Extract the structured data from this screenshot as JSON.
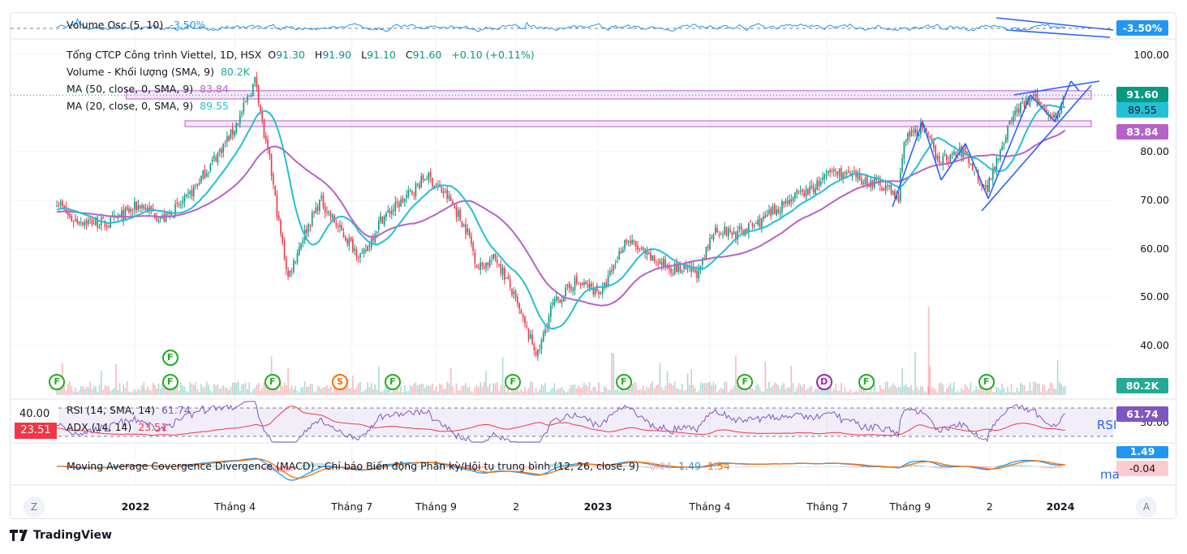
{
  "colors": {
    "up": "#089981",
    "down": "#f23645",
    "ma20": "#22c0d4",
    "ma50": "#b762c9",
    "rsi": "#7e57c2",
    "adx": "#f23645",
    "vosc": "#2196f3",
    "macd": "#2196f3",
    "signal": "#ff6d00",
    "drawing": "#2962ff"
  },
  "legend": {
    "vosc_label": "Volume Osc (5, 10)",
    "vosc_value": "-3.50%",
    "symbol": "Tổng CTCP Công trình Viettel, 1D, HSX",
    "o_label": "O",
    "o": "91.30",
    "h_label": "H",
    "h": "91.90",
    "l_label": "L",
    "l": "91.10",
    "c_label": "C",
    "c": "91.60",
    "change": "+0.10 (+0.11%)",
    "volume_label": "Volume - Khối lượng (SMA, 9)",
    "volume_value": "80.2K",
    "ma50_label": "MA (50, close, 0, SMA, 9)",
    "ma50_value": "83.84",
    "ma20_label": "MA (20, close, 0, SMA, 9)",
    "ma20_value": "89.55",
    "rsi_label": "RSI (14, SMA, 14)",
    "rsi_value": "61.74",
    "adx_label": "ADX (14, 14)",
    "adx_value": "23.51",
    "macd_label": "Moving Average Covergence Divergence (MACD) - Chỉ báo Biến động Phân kỳ/Hội tụ trung bình (12, 26, close, 9)",
    "macd_hist": "-0.04",
    "macd_value": "1.49",
    "macd_signal": "1.54"
  },
  "price_axis": [
    "100.00",
    "80.00",
    "70.00",
    "60.00",
    "50.00",
    "40.00"
  ],
  "tags": {
    "vosc": "-3.50%",
    "close": "91.60",
    "ma20": "89.55",
    "ma50": "83.84",
    "volume": "80.2K",
    "rsi": "61.74",
    "rsi_axis": "30.00",
    "macd": "1.49",
    "hist": "-0.04",
    "left_level": "40.00",
    "adx_left": "23.51"
  },
  "pane_labels": {
    "rsi": "RSI",
    "macd": "ma"
  },
  "time_axis": [
    {
      "label": "2022",
      "bold": true,
      "t": 2022.0
    },
    {
      "label": "Tháng 4",
      "bold": false,
      "t": 2022.215
    },
    {
      "label": "Tháng 7",
      "bold": false,
      "t": 2022.468
    },
    {
      "label": "Tháng 9",
      "bold": false,
      "t": 2022.65
    },
    {
      "label": "2",
      "bold": false,
      "t": 2022.823
    },
    {
      "label": "2023",
      "bold": true,
      "t": 2023.0
    },
    {
      "label": "Tháng 4",
      "bold": false,
      "t": 2023.242
    },
    {
      "label": "Tháng 7",
      "bold": false,
      "t": 2023.496
    },
    {
      "label": "Tháng 9",
      "bold": false,
      "t": 2023.675
    },
    {
      "label": "2",
      "bold": false,
      "t": 2023.847
    },
    {
      "label": "2024",
      "bold": true,
      "t": 2024.0
    }
  ],
  "buttons": {
    "z": "Z",
    "a": "A"
  },
  "brand": "TradingView",
  "events": [
    {
      "letter": "F",
      "t": 2021.83,
      "row": 1,
      "color": "#22ab22"
    },
    {
      "letter": "F",
      "t": 2022.075,
      "row": 0,
      "color": "#22ab22"
    },
    {
      "letter": "F",
      "t": 2022.075,
      "row": 1,
      "color": "#22ab22"
    },
    {
      "letter": "F",
      "t": 2022.296,
      "row": 1,
      "color": "#22ab22"
    },
    {
      "letter": "S",
      "t": 2022.442,
      "row": 1,
      "color": "#ff6d00"
    },
    {
      "letter": "F",
      "t": 2022.556,
      "row": 1,
      "color": "#22ab22"
    },
    {
      "letter": "F",
      "t": 2022.816,
      "row": 1,
      "color": "#22ab22"
    },
    {
      "letter": "F",
      "t": 2023.056,
      "row": 1,
      "color": "#22ab22"
    },
    {
      "letter": "F",
      "t": 2023.318,
      "row": 1,
      "color": "#22ab22"
    },
    {
      "letter": "D",
      "t": 2023.489,
      "row": 1,
      "color": "#9c27b0"
    },
    {
      "letter": "F",
      "t": 2023.58,
      "row": 1,
      "color": "#22ab22"
    },
    {
      "letter": "F",
      "t": 2023.84,
      "row": 1,
      "color": "#22ab22"
    }
  ],
  "chart_data": {
    "type": "candlestick",
    "title": "Tổng CTCP Công trình Viettel, 1D, HSX",
    "ylim": [
      33,
      103
    ],
    "yticks": [
      40,
      50,
      60,
      70,
      80,
      100
    ],
    "last": {
      "open": 91.3,
      "high": 91.9,
      "low": 91.1,
      "close": 91.6,
      "change": 0.1,
      "change_pct": 0.11
    },
    "zones": [
      {
        "from": 90.8,
        "to": 92.5,
        "start": 2021.98
      },
      {
        "from": 85.1,
        "to": 86.3,
        "start": 2022.107
      }
    ],
    "close_keypoints": [
      [
        2021.83,
        70
      ],
      [
        2021.86,
        66
      ],
      [
        2021.94,
        65
      ],
      [
        2022.01,
        69
      ],
      [
        2022.06,
        66
      ],
      [
        2022.11,
        70
      ],
      [
        2022.16,
        77
      ],
      [
        2022.21,
        84
      ],
      [
        2022.23,
        88
      ],
      [
        2022.26,
        95
      ],
      [
        2022.28,
        82
      ],
      [
        2022.29,
        78
      ],
      [
        2022.31,
        65
      ],
      [
        2022.33,
        54
      ],
      [
        2022.36,
        62
      ],
      [
        2022.4,
        70
      ],
      [
        2022.44,
        64
      ],
      [
        2022.49,
        58
      ],
      [
        2022.53,
        66
      ],
      [
        2022.58,
        70
      ],
      [
        2022.63,
        75
      ],
      [
        2022.68,
        70
      ],
      [
        2022.72,
        63
      ],
      [
        2022.74,
        56
      ],
      [
        2022.78,
        58
      ],
      [
        2022.81,
        52
      ],
      [
        2022.85,
        42
      ],
      [
        2022.87,
        38
      ],
      [
        2022.9,
        48
      ],
      [
        2022.95,
        53
      ],
      [
        2023.01,
        51
      ],
      [
        2023.06,
        62
      ],
      [
        2023.11,
        58
      ],
      [
        2023.16,
        56
      ],
      [
        2023.22,
        55
      ],
      [
        2023.25,
        64
      ],
      [
        2023.3,
        63
      ],
      [
        2023.36,
        66
      ],
      [
        2023.41,
        70
      ],
      [
        2023.46,
        72
      ],
      [
        2023.51,
        76
      ],
      [
        2023.57,
        74
      ],
      [
        2023.62,
        73
      ],
      [
        2023.65,
        70
      ],
      [
        2023.66,
        82
      ],
      [
        2023.7,
        85
      ],
      [
        2023.74,
        78
      ],
      [
        2023.79,
        80
      ],
      [
        2023.84,
        72
      ],
      [
        2023.86,
        78
      ],
      [
        2023.9,
        88
      ],
      [
        2023.94,
        91
      ],
      [
        2023.99,
        87
      ],
      [
        2024.01,
        91.6
      ]
    ],
    "indicators": {
      "ma20_last": 89.55,
      "ma50_last": 83.84,
      "volume_sma_last": "80.2K",
      "rsi_last": 61.74,
      "adx_last": 23.51,
      "macd_last": 1.49,
      "signal_last": 1.54,
      "hist_last": -0.04,
      "vosc_last": -3.5
    }
  }
}
